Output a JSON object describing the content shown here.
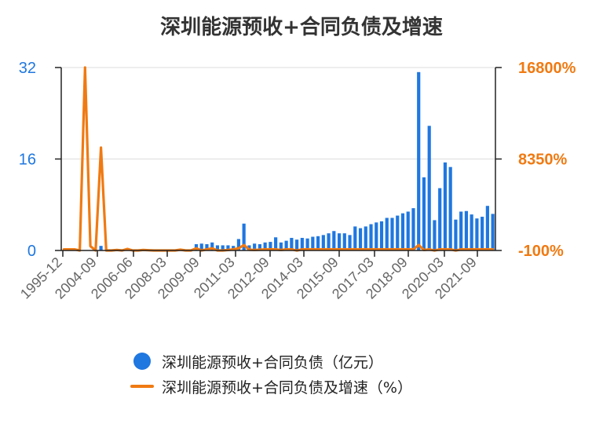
{
  "chart_data": {
    "type": "bar+line",
    "title": "深圳能源预收+合同负债及增速",
    "colors": {
      "bar": "#1f77e0",
      "line": "#f07a12",
      "left_axis": "#1f77e0",
      "right_axis": "#f07a12"
    },
    "x_tick_labels": [
      "1995-12",
      "2004-09",
      "2006-06",
      "2008-03",
      "2009-09",
      "2011-03",
      "2012-09",
      "2014-03",
      "2015-09",
      "2017-03",
      "2018-09",
      "2020-03",
      "2021-09"
    ],
    "y_left": {
      "ticks": [
        "0",
        "16",
        "32"
      ],
      "range": [
        0,
        32
      ]
    },
    "y_right": {
      "ticks": [
        "-100%",
        "8350%",
        "16800%"
      ],
      "range": [
        -100,
        16800
      ]
    },
    "grid": true,
    "legend_position": "bottom",
    "series": [
      {
        "name": "深圳能源预收+合同负债（亿元）",
        "type": "bar",
        "axis": "left",
        "values": [
          0,
          0,
          0,
          0,
          0,
          0,
          0,
          0.8,
          0,
          0,
          0,
          0,
          0,
          0,
          0,
          0,
          0,
          0,
          0,
          0,
          0,
          0,
          0,
          0,
          0,
          1.1,
          1.2,
          1.1,
          1.4,
          0.9,
          0.9,
          0.9,
          0.8,
          2.0,
          4.7,
          0.9,
          1.2,
          1.1,
          1.4,
          1.5,
          2.3,
          1.4,
          1.7,
          2.2,
          1.9,
          2.2,
          2.1,
          2.4,
          2.5,
          2.7,
          3.0,
          3.4,
          3.0,
          3.0,
          2.7,
          4.2,
          3.9,
          4.2,
          4.6,
          4.9,
          5.1,
          5.7,
          5.7,
          6.1,
          6.5,
          6.8,
          7.4,
          31.2,
          12.8,
          21.8,
          5.3,
          10.9,
          15.4,
          14.6,
          5.4,
          6.8,
          6.9,
          6.3,
          5.6,
          5.9,
          7.8,
          6.4
        ]
      },
      {
        "name": "深圳能源预收+合同负债及增速（%）",
        "type": "line",
        "axis": "right",
        "values": [
          0,
          0,
          0,
          -100,
          16800,
          300,
          -100,
          9400,
          -100,
          -100,
          -50,
          -100,
          40,
          -100,
          -100,
          -50,
          -80,
          -100,
          -100,
          -100,
          -100,
          -100,
          -30,
          -100,
          -100,
          100,
          -100,
          0,
          100,
          -100,
          -100,
          -60,
          0,
          100,
          400,
          -30,
          -60,
          -30,
          0,
          0,
          0,
          -60,
          0,
          0,
          -100,
          0,
          0,
          0,
          0,
          0,
          0,
          0,
          0,
          0,
          0,
          0,
          0,
          0,
          0,
          0,
          0,
          0,
          0,
          0,
          0,
          0,
          0,
          400,
          -60,
          0,
          -100,
          0,
          0,
          0,
          -100,
          0,
          0,
          0,
          0,
          0,
          0,
          0
        ]
      }
    ]
  }
}
